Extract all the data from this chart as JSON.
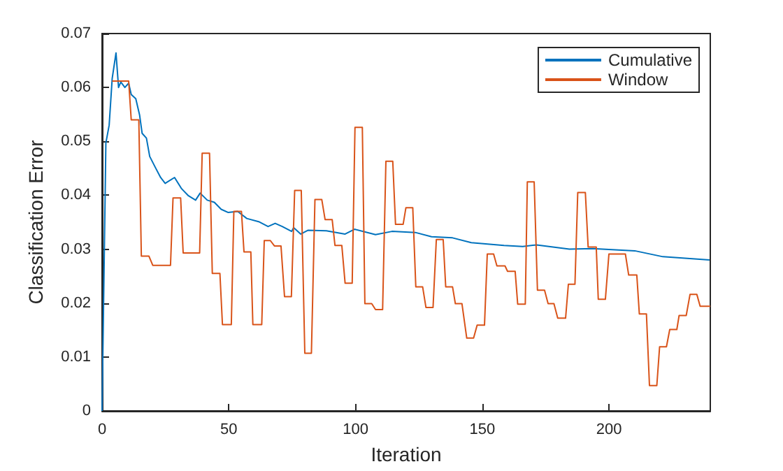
{
  "chart_data": {
    "type": "line",
    "xlabel": "Iteration",
    "ylabel": "Classification Error",
    "xlim": [
      0,
      240
    ],
    "xticks": [
      0,
      50,
      100,
      150,
      200
    ],
    "ylim": [
      0,
      0.07
    ],
    "yticks": [
      0,
      0.01,
      0.02,
      0.03,
      0.04,
      0.05,
      0.06,
      0.07
    ],
    "grid": false,
    "legend": "top right",
    "marker": "none",
    "line_style": "solid",
    "series": [
      {
        "name": "Cumulative",
        "color": "#0072bd",
        "x": [
          0,
          1.5,
          2.8,
          4,
          5.5,
          6.5,
          7.4,
          9,
          10.5,
          11.5,
          13.3,
          14.8,
          15.8,
          17.5,
          18.8,
          21.2,
          23.1,
          24.9,
          28.6,
          31.4,
          34.1,
          36.9,
          38.7,
          41.5,
          44.3,
          47,
          49.8,
          53.5,
          57.1,
          61.8,
          65.5,
          68.3,
          71.1,
          74.8,
          75.6,
          78.4,
          81.2,
          88.5,
          95.9,
          99.6,
          107.9,
          114.4,
          123.6,
          130,
          138.3,
          145.7,
          158.6,
          166,
          171.5,
          184.4,
          193.6,
          210.2,
          221.3,
          239.7
        ],
        "values": [
          0,
          0.0497,
          0.053,
          0.0617,
          0.0664,
          0.06,
          0.061,
          0.06,
          0.0608,
          0.0587,
          0.0579,
          0.0549,
          0.0515,
          0.0506,
          0.0472,
          0.045,
          0.0433,
          0.0422,
          0.0433,
          0.0412,
          0.0399,
          0.0391,
          0.0404,
          0.0391,
          0.0387,
          0.0374,
          0.0368,
          0.037,
          0.0357,
          0.0351,
          0.0342,
          0.0348,
          0.0342,
          0.0333,
          0.034,
          0.0328,
          0.0335,
          0.0334,
          0.0328,
          0.0337,
          0.0327,
          0.0333,
          0.0331,
          0.0323,
          0.0321,
          0.0312,
          0.0307,
          0.0305,
          0.0308,
          0.03,
          0.0301,
          0.0297,
          0.0286,
          0.028
        ]
      },
      {
        "name": "Window",
        "color": "#d95319",
        "x": [
          4,
          10.5,
          11.5,
          14.5,
          15.5,
          18.5,
          20,
          27,
          28,
          31,
          32,
          38.5,
          39.5,
          42.4,
          43.5,
          46.5,
          47.5,
          51,
          52,
          55,
          56,
          58.7,
          59.5,
          63,
          64,
          66.4,
          68,
          70.6,
          72,
          74.7,
          76,
          78.6,
          80,
          82.6,
          84,
          86.7,
          88,
          90.8,
          91.9,
          94.6,
          95.9,
          98.7,
          99.8,
          102.7,
          103.7,
          106.4,
          107.9,
          110.7,
          112,
          114.7,
          115.8,
          118.8,
          119.9,
          122.6,
          123.8,
          126.5,
          127.8,
          130.6,
          131.9,
          134.6,
          135.6,
          138.3,
          139.4,
          142,
          143.9,
          146.6,
          148,
          150.9,
          152,
          154.5,
          155.8,
          159,
          160,
          163,
          164,
          167,
          167.8,
          170.5,
          171.8,
          174.6,
          176,
          178.3,
          179.8,
          182.9,
          184,
          186.6,
          187.7,
          190.7,
          191.8,
          195,
          195.8,
          198.6,
          200,
          206.5,
          207.8,
          211,
          212,
          214.8,
          216,
          218.9,
          220,
          222.7,
          224,
          226.8,
          227.7,
          230.5,
          232,
          234.7,
          236,
          240
        ],
        "values": [
          0.0612,
          0.0612,
          0.054,
          0.054,
          0.0287,
          0.0287,
          0.027,
          0.027,
          0.0395,
          0.0395,
          0.0293,
          0.0293,
          0.0478,
          0.0478,
          0.0255,
          0.0255,
          0.016,
          0.016,
          0.037,
          0.037,
          0.0295,
          0.0295,
          0.016,
          0.016,
          0.0316,
          0.0316,
          0.0306,
          0.0306,
          0.0212,
          0.0212,
          0.0409,
          0.0409,
          0.0107,
          0.0107,
          0.0392,
          0.0392,
          0.0355,
          0.0355,
          0.0307,
          0.0307,
          0.0237,
          0.0237,
          0.0526,
          0.0526,
          0.0199,
          0.0199,
          0.0188,
          0.0188,
          0.0463,
          0.0463,
          0.0346,
          0.0346,
          0.0377,
          0.0377,
          0.023,
          0.023,
          0.0192,
          0.0192,
          0.0318,
          0.0318,
          0.023,
          0.023,
          0.0199,
          0.0199,
          0.0135,
          0.0135,
          0.0159,
          0.0159,
          0.0291,
          0.0291,
          0.0269,
          0.0269,
          0.0259,
          0.0259,
          0.0198,
          0.0198,
          0.0425,
          0.0425,
          0.0224,
          0.0224,
          0.0199,
          0.0199,
          0.0172,
          0.0172,
          0.0235,
          0.0235,
          0.0405,
          0.0405,
          0.0304,
          0.0304,
          0.0207,
          0.0207,
          0.0291,
          0.0291,
          0.0252,
          0.0252,
          0.018,
          0.018,
          0.0047,
          0.0047,
          0.0119,
          0.0119,
          0.0151,
          0.0151,
          0.0177,
          0.0177,
          0.0216,
          0.0216,
          0.0194,
          0.0194
        ]
      }
    ]
  }
}
